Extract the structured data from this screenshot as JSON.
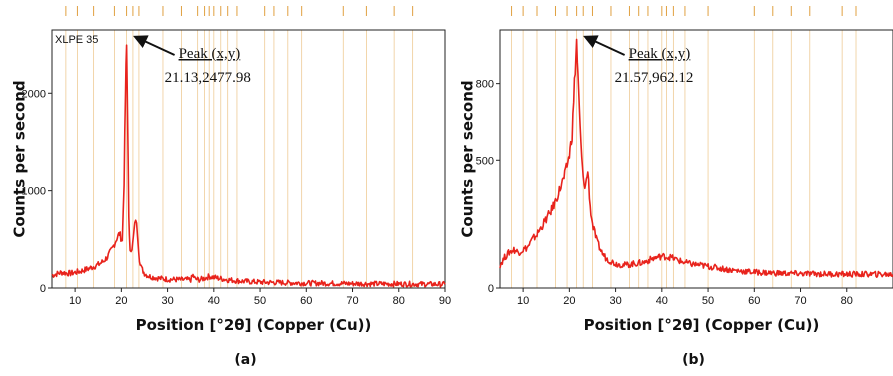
{
  "colors": {
    "trace": "#e8231c",
    "ref_lines": "#e0a040",
    "axis": "#222222",
    "arrow": "#111111"
  },
  "chart_data": [
    {
      "type": "line",
      "panel_label": "(a)",
      "sample_label": "XLPE 35",
      "xlabel": "Position [°2θ] (Copper (Cu))",
      "ylabel": "Counts per second",
      "xlim": [
        5,
        90
      ],
      "ylim": [
        0,
        2650
      ],
      "xticks": [
        10,
        20,
        30,
        40,
        50,
        60,
        70,
        80,
        90
      ],
      "yticks": [
        0,
        1000,
        2000
      ],
      "annotation": {
        "label": "Peak (x,y)",
        "value": "21.13,2477.98",
        "x": 21.13,
        "y": 2477.98
      },
      "series": [
        {
          "x": [
            5,
            7,
            9,
            11,
            13,
            15,
            16,
            17,
            18,
            19,
            19.6,
            20.2,
            20.6,
            20.9,
            21.13,
            21.35,
            21.6,
            21.9,
            22.3,
            22.7,
            23.1,
            23.5,
            23.9,
            24.4,
            25,
            26,
            28,
            30,
            33,
            35,
            35.5,
            36,
            37,
            38,
            39,
            40,
            41,
            43,
            46,
            50,
            55,
            60,
            65,
            70,
            75,
            80,
            85,
            90
          ],
          "y": [
            130,
            160,
            150,
            170,
            200,
            240,
            270,
            320,
            400,
            510,
            560,
            480,
            1100,
            2000,
            2477.98,
            1800,
            700,
            420,
            380,
            560,
            720,
            560,
            300,
            200,
            150,
            120,
            100,
            90,
            85,
            85,
            130,
            90,
            85,
            100,
            120,
            110,
            100,
            85,
            70,
            60,
            55,
            50,
            48,
            45,
            43,
            42,
            40,
            38
          ]
        }
      ],
      "reference_lines_x": [
        8,
        10.5,
        14,
        18.5,
        21.13,
        22.5,
        23.8,
        29,
        33,
        36.5,
        38,
        39,
        40,
        41.5,
        43,
        45,
        51,
        53,
        56,
        59,
        68,
        73,
        79,
        83
      ]
    },
    {
      "type": "line",
      "panel_label": "(b)",
      "sample_label": "",
      "xlabel": "Position [°2θ] (Copper (Cu))",
      "ylabel": "Counts per second",
      "xlim": [
        5,
        90
      ],
      "ylim": [
        0,
        1010
      ],
      "xticks": [
        10,
        20,
        30,
        40,
        50,
        60,
        70,
        80
      ],
      "yticks": [
        0,
        500,
        800
      ],
      "annotation": {
        "label": "Peak (x,y)",
        "value": "21.57,962.12",
        "x": 21.57,
        "y": 962.12
      },
      "series": [
        {
          "x": [
            5,
            6,
            7,
            8,
            9,
            10,
            11,
            12,
            13,
            14,
            15,
            16,
            17,
            18,
            19,
            20,
            20.6,
            21.1,
            21.57,
            22,
            22.5,
            23,
            23.5,
            24,
            24.5,
            25,
            26,
            27,
            28,
            30,
            32,
            34,
            36,
            38,
            40,
            42,
            44,
            46,
            50,
            55,
            60,
            65,
            70,
            75,
            80,
            85,
            90
          ],
          "y": [
            90,
            120,
            140,
            150,
            140,
            150,
            160,
            190,
            210,
            240,
            270,
            300,
            340,
            390,
            440,
            520,
            600,
            800,
            962.12,
            760,
            560,
            420,
            400,
            460,
            320,
            250,
            180,
            140,
            115,
            95,
            90,
            95,
            100,
            115,
            125,
            120,
            105,
            95,
            85,
            70,
            62,
            58,
            56,
            55,
            54,
            54,
            53
          ]
        }
      ],
      "reference_lines_x": [
        7.5,
        10,
        13,
        17,
        19.5,
        21.57,
        23,
        25,
        29,
        33,
        35,
        37,
        40,
        41,
        42.5,
        45,
        50,
        60,
        64,
        68,
        72,
        79,
        82
      ]
    }
  ]
}
